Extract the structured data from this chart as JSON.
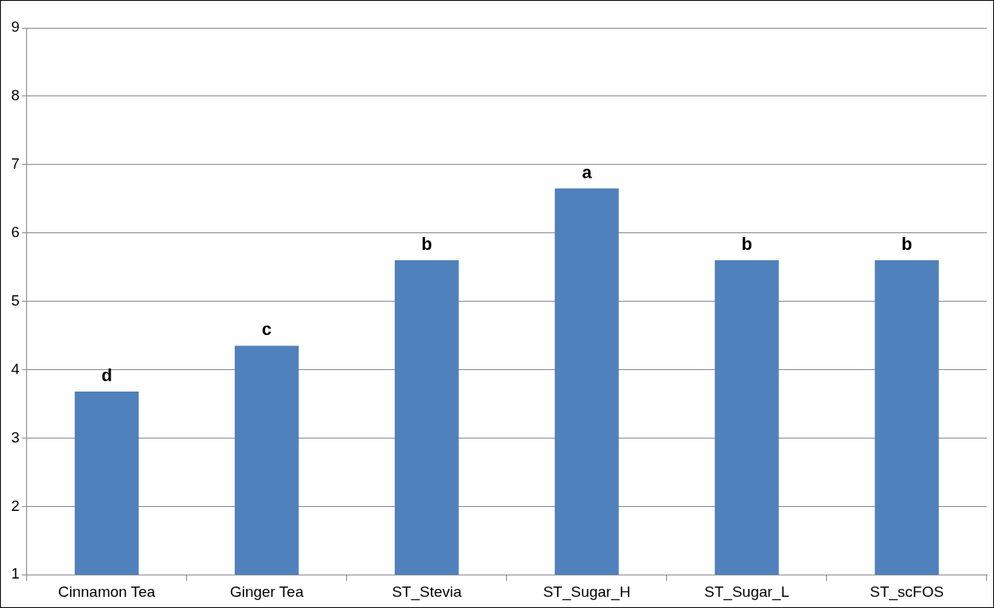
{
  "chart_data": {
    "type": "bar",
    "categories": [
      "Cinnamon Tea",
      "Ginger Tea",
      "ST_Stevia",
      "ST_Sugar_H",
      "ST_Sugar_L",
      "ST_scFOS"
    ],
    "values": [
      3.68,
      4.35,
      5.6,
      6.65,
      5.6,
      5.6
    ],
    "value_labels": [
      "d",
      "c",
      "b",
      "a",
      "b",
      "b"
    ],
    "color": "#4f81bd",
    "ylim": [
      1,
      9
    ],
    "yticks": [
      1,
      2,
      3,
      4,
      5,
      6,
      7,
      8,
      9
    ],
    "grid": "y",
    "legend": false
  }
}
